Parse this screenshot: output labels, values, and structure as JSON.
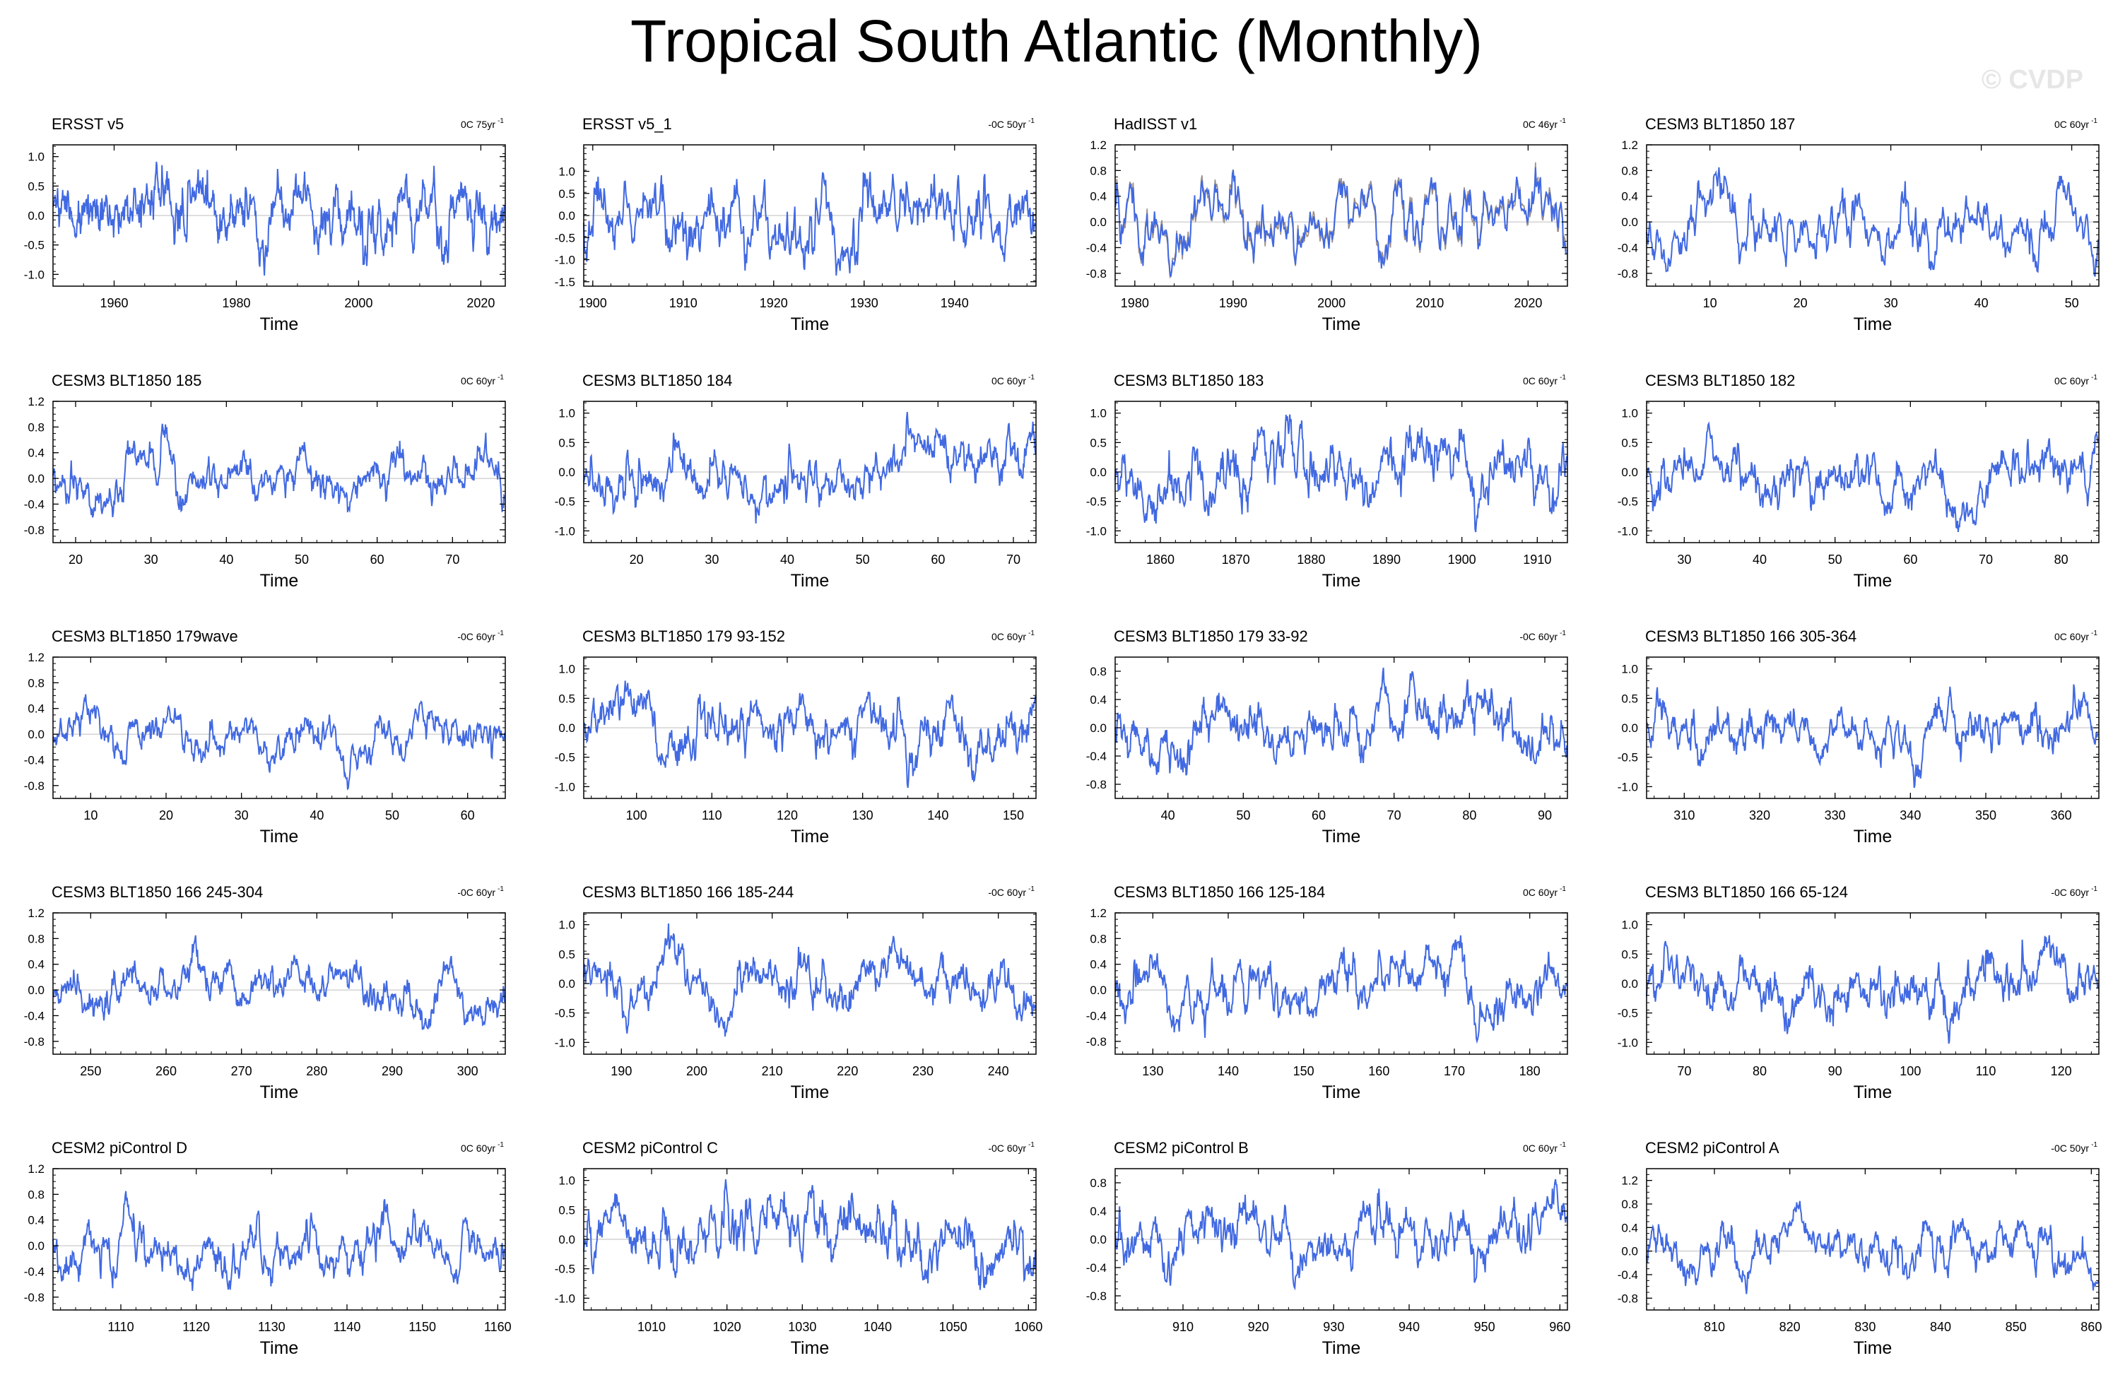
{
  "title": "Tropical South Atlantic (Monthly)",
  "credit": "© CVDP",
  "series_color": "#4169E1",
  "chart_data": [
    {
      "type": "line",
      "title": "ERSST v5",
      "rate": "0C 75yr",
      "xlabel": "Time",
      "xlim": [
        1950,
        2024
      ],
      "ylim": [
        -1.2,
        1.2
      ],
      "xticks": [
        1960,
        1980,
        2000,
        2020
      ],
      "yticks": [
        "1.0",
        "0.5",
        "0.0",
        "-0.5",
        "-1.0"
      ],
      "ytickvals": [
        1.0,
        0.5,
        0.0,
        -0.5,
        -1.0
      ],
      "seed": 11
    },
    {
      "type": "line",
      "title": "ERSST v5_1",
      "rate": "-0C 50yr",
      "xlabel": "Time",
      "xlim": [
        1899,
        1949
      ],
      "ylim": [
        -1.6,
        1.6
      ],
      "xticks": [
        1900,
        1910,
        1920,
        1930,
        1940
      ],
      "yticks": [
        "1.0",
        "0.5",
        "0.0",
        "-0.5",
        "-1.0",
        "-1.5"
      ],
      "ytickvals": [
        1.0,
        0.5,
        0.0,
        -0.5,
        -1.0,
        -1.5
      ],
      "seed": 12
    },
    {
      "type": "line",
      "title": "HadISST v1",
      "rate": "0C 46yr",
      "xlabel": "Time",
      "xlim": [
        1978,
        2024
      ],
      "ylim": [
        -1.0,
        1.2
      ],
      "xticks": [
        1980,
        1990,
        2000,
        2010,
        2020
      ],
      "yticks": [
        "1.2",
        "0.8",
        "0.4",
        "0.0",
        "-0.4",
        "-0.8"
      ],
      "ytickvals": [
        1.2,
        0.8,
        0.4,
        0.0,
        -0.4,
        -0.8
      ],
      "seed": 13,
      "overlay": true
    },
    {
      "type": "line",
      "title": "CESM3 BLT1850 187",
      "rate": "0C 60yr",
      "xlabel": "Time",
      "xlim": [
        3,
        53
      ],
      "ylim": [
        -1.0,
        1.2
      ],
      "xticks": [
        10,
        20,
        30,
        40,
        50
      ],
      "yticks": [
        "1.2",
        "0.8",
        "0.4",
        "0.0",
        "-0.4",
        "-0.8"
      ],
      "ytickvals": [
        1.2,
        0.8,
        0.4,
        0.0,
        -0.4,
        -0.8
      ],
      "seed": 14
    },
    {
      "type": "line",
      "title": "CESM3 BLT1850 185",
      "rate": "0C 60yr",
      "xlabel": "Time",
      "xlim": [
        17,
        77
      ],
      "ylim": [
        -1.0,
        1.2
      ],
      "xticks": [
        20,
        30,
        40,
        50,
        60,
        70
      ],
      "yticks": [
        "1.2",
        "0.8",
        "0.4",
        "0.0",
        "-0.4",
        "-0.8"
      ],
      "ytickvals": [
        1.2,
        0.8,
        0.4,
        0.0,
        -0.4,
        -0.8
      ],
      "seed": 15
    },
    {
      "type": "line",
      "title": "CESM3 BLT1850 184",
      "rate": "0C 60yr",
      "xlabel": "Time",
      "xlim": [
        13,
        73
      ],
      "ylim": [
        -1.2,
        1.2
      ],
      "xticks": [
        20,
        30,
        40,
        50,
        60,
        70
      ],
      "yticks": [
        "1.0",
        "0.5",
        "0.0",
        "-0.5",
        "-1.0"
      ],
      "ytickvals": [
        1.0,
        0.5,
        0.0,
        -0.5,
        -1.0
      ],
      "seed": 16
    },
    {
      "type": "line",
      "title": "CESM3 BLT1850 183",
      "rate": "0C 60yr",
      "xlabel": "Time",
      "xlim": [
        1854,
        1914
      ],
      "ylim": [
        -1.2,
        1.2
      ],
      "xticks": [
        1860,
        1870,
        1880,
        1890,
        1900,
        1910
      ],
      "yticks": [
        "1.0",
        "0.5",
        "0.0",
        "-0.5",
        "-1.0"
      ],
      "ytickvals": [
        1.0,
        0.5,
        0.0,
        -0.5,
        -1.0
      ],
      "seed": 17
    },
    {
      "type": "line",
      "title": "CESM3 BLT1850 182",
      "rate": "0C 60yr",
      "xlabel": "Time",
      "xlim": [
        25,
        85
      ],
      "ylim": [
        -1.2,
        1.2
      ],
      "xticks": [
        30,
        40,
        50,
        60,
        70,
        80
      ],
      "yticks": [
        "1.0",
        "0.5",
        "0.0",
        "-0.5",
        "-1.0"
      ],
      "ytickvals": [
        1.0,
        0.5,
        0.0,
        -0.5,
        -1.0
      ],
      "seed": 18
    },
    {
      "type": "line",
      "title": "CESM3 BLT1850 179wave",
      "rate": "-0C 60yr",
      "xlabel": "Time",
      "xlim": [
        5,
        65
      ],
      "ylim": [
        -1.0,
        1.2
      ],
      "xticks": [
        10,
        20,
        30,
        40,
        50,
        60
      ],
      "yticks": [
        "1.2",
        "0.8",
        "0.4",
        "0.0",
        "-0.4",
        "-0.8"
      ],
      "ytickvals": [
        1.2,
        0.8,
        0.4,
        0.0,
        -0.4,
        -0.8
      ],
      "seed": 19
    },
    {
      "type": "line",
      "title": "CESM3 BLT1850 179 93-152",
      "rate": "0C 60yr",
      "xlabel": "Time",
      "xlim": [
        93,
        153
      ],
      "ylim": [
        -1.2,
        1.2
      ],
      "xticks": [
        100,
        110,
        120,
        130,
        140,
        150
      ],
      "yticks": [
        "1.0",
        "0.5",
        "0.0",
        "-0.5",
        "-1.0"
      ],
      "ytickvals": [
        1.0,
        0.5,
        0.0,
        -0.5,
        -1.0
      ],
      "seed": 20
    },
    {
      "type": "line",
      "title": "CESM3 BLT1850 179 33-92",
      "rate": "-0C 60yr",
      "xlabel": "Time",
      "xlim": [
        33,
        93
      ],
      "ylim": [
        -1.0,
        1.0
      ],
      "xticks": [
        40,
        50,
        60,
        70,
        80,
        90
      ],
      "yticks": [
        "0.8",
        "0.4",
        "0.0",
        "-0.4",
        "-0.8"
      ],
      "ytickvals": [
        0.8,
        0.4,
        0.0,
        -0.4,
        -0.8
      ],
      "seed": 21
    },
    {
      "type": "line",
      "title": "CESM3 BLT1850 166 305-364",
      "rate": "0C 60yr",
      "xlabel": "Time",
      "xlim": [
        305,
        365
      ],
      "ylim": [
        -1.2,
        1.2
      ],
      "xticks": [
        310,
        320,
        330,
        340,
        350,
        360
      ],
      "yticks": [
        "1.0",
        "0.5",
        "0.0",
        "-0.5",
        "-1.0"
      ],
      "ytickvals": [
        1.0,
        0.5,
        0.0,
        -0.5,
        -1.0
      ],
      "seed": 22
    },
    {
      "type": "line",
      "title": "CESM3 BLT1850 166 245-304",
      "rate": "-0C 60yr",
      "xlabel": "Time",
      "xlim": [
        245,
        305
      ],
      "ylim": [
        -1.0,
        1.2
      ],
      "xticks": [
        250,
        260,
        270,
        280,
        290,
        300
      ],
      "yticks": [
        "1.2",
        "0.8",
        "0.4",
        "0.0",
        "-0.4",
        "-0.8"
      ],
      "ytickvals": [
        1.2,
        0.8,
        0.4,
        0.0,
        -0.4,
        -0.8
      ],
      "seed": 23
    },
    {
      "type": "line",
      "title": "CESM3 BLT1850 166 185-244",
      "rate": "-0C 60yr",
      "xlabel": "Time",
      "xlim": [
        185,
        245
      ],
      "ylim": [
        -1.2,
        1.2
      ],
      "xticks": [
        190,
        200,
        210,
        220,
        230,
        240
      ],
      "yticks": [
        "1.0",
        "0.5",
        "0.0",
        "-0.5",
        "-1.0"
      ],
      "ytickvals": [
        1.0,
        0.5,
        0.0,
        -0.5,
        -1.0
      ],
      "seed": 24
    },
    {
      "type": "line",
      "title": "CESM3 BLT1850 166 125-184",
      "rate": "0C 60yr",
      "xlabel": "Time",
      "xlim": [
        125,
        185
      ],
      "ylim": [
        -1.0,
        1.2
      ],
      "xticks": [
        130,
        140,
        150,
        160,
        170,
        180
      ],
      "yticks": [
        "1.2",
        "0.8",
        "0.4",
        "0.0",
        "-0.4",
        "-0.8"
      ],
      "ytickvals": [
        1.2,
        0.8,
        0.4,
        0.0,
        -0.4,
        -0.8
      ],
      "seed": 25
    },
    {
      "type": "line",
      "title": "CESM3 BLT1850 166 65-124",
      "rate": "-0C 60yr",
      "xlabel": "Time",
      "xlim": [
        65,
        125
      ],
      "ylim": [
        -1.2,
        1.2
      ],
      "xticks": [
        70,
        80,
        90,
        100,
        110,
        120
      ],
      "yticks": [
        "1.0",
        "0.5",
        "0.0",
        "-0.5",
        "-1.0"
      ],
      "ytickvals": [
        1.0,
        0.5,
        0.0,
        -0.5,
        -1.0
      ],
      "seed": 26
    },
    {
      "type": "line",
      "title": "CESM2 piControl D",
      "rate": "0C 60yr",
      "xlabel": "Time",
      "xlim": [
        1101,
        1161
      ],
      "ylim": [
        -1.0,
        1.2
      ],
      "xticks": [
        1110,
        1120,
        1130,
        1140,
        1150,
        1160
      ],
      "yticks": [
        "1.2",
        "0.8",
        "0.4",
        "0.0",
        "-0.4",
        "-0.8"
      ],
      "ytickvals": [
        1.2,
        0.8,
        0.4,
        0.0,
        -0.4,
        -0.8
      ],
      "seed": 27
    },
    {
      "type": "line",
      "title": "CESM2 piControl C",
      "rate": "-0C 60yr",
      "xlabel": "Time",
      "xlim": [
        1001,
        1061
      ],
      "ylim": [
        -1.2,
        1.2
      ],
      "xticks": [
        1010,
        1020,
        1030,
        1040,
        1050,
        1060
      ],
      "yticks": [
        "1.0",
        "0.5",
        "0.0",
        "-0.5",
        "-1.0"
      ],
      "ytickvals": [
        1.0,
        0.5,
        0.0,
        -0.5,
        -1.0
      ],
      "seed": 28
    },
    {
      "type": "line",
      "title": "CESM2 piControl B",
      "rate": "0C 60yr",
      "xlabel": "Time",
      "xlim": [
        901,
        961
      ],
      "ylim": [
        -1.0,
        1.0
      ],
      "xticks": [
        910,
        920,
        930,
        940,
        950,
        960
      ],
      "yticks": [
        "0.8",
        "0.4",
        "0.0",
        "-0.4",
        "-0.8"
      ],
      "ytickvals": [
        0.8,
        0.4,
        0.0,
        -0.4,
        -0.8
      ],
      "seed": 29
    },
    {
      "type": "line",
      "title": "CESM2 piControl A",
      "rate": "-0C 50yr",
      "xlabel": "Time",
      "xlim": [
        801,
        861
      ],
      "ylim": [
        -1.0,
        1.4
      ],
      "xticks": [
        810,
        820,
        830,
        840,
        850,
        860
      ],
      "yticks": [
        "1.2",
        "0.8",
        "0.4",
        "0.0",
        "-0.4",
        "-0.8"
      ],
      "ytickvals": [
        1.2,
        0.8,
        0.4,
        0.0,
        -0.4,
        -0.8
      ],
      "seed": 30
    }
  ]
}
